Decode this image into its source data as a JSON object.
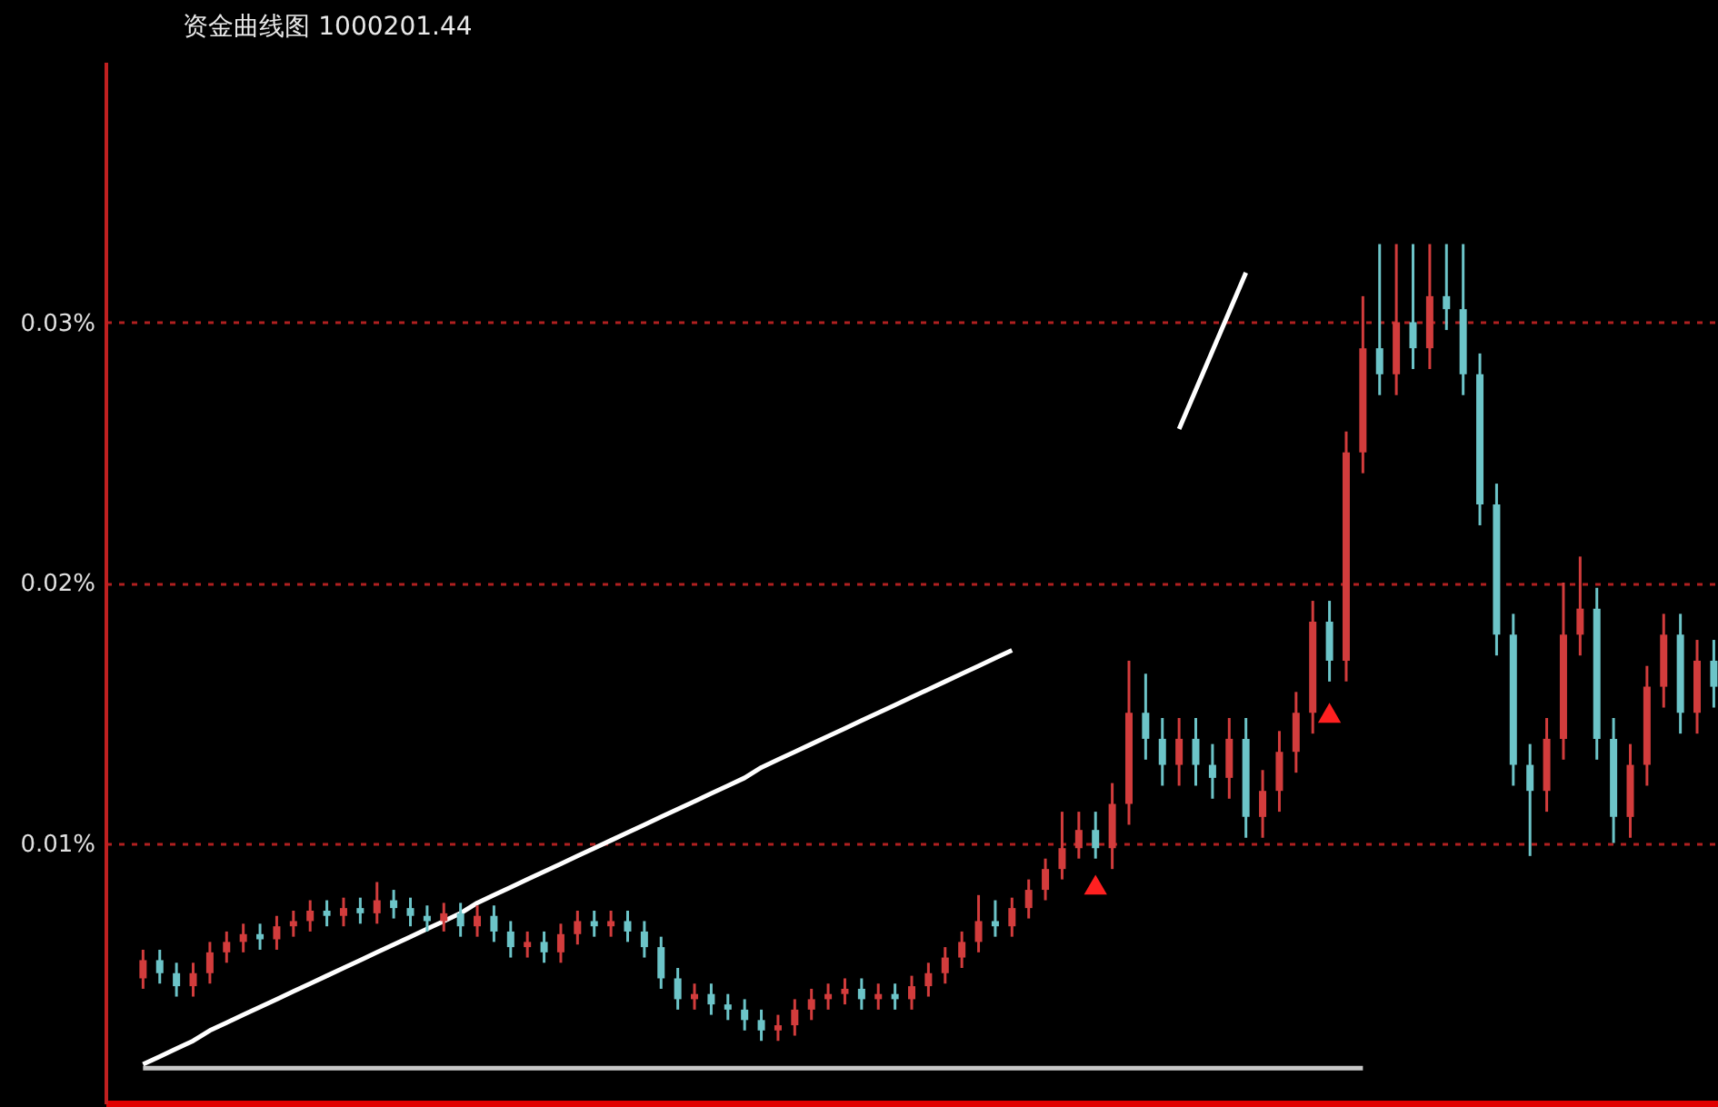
{
  "chart_data": {
    "type": "candlestick",
    "title": "资金曲线图  1000201.44",
    "categories": [
      null,
      null,
      null,
      null,
      null,
      null,
      null,
      null,
      null,
      null,
      null,
      null,
      null,
      null,
      null,
      null,
      null,
      null,
      null,
      null,
      null,
      null,
      null,
      null,
      null,
      null,
      null,
      null,
      null,
      null,
      null,
      null,
      null,
      null,
      null,
      null,
      null,
      null,
      null,
      null,
      null,
      null,
      null,
      null,
      null,
      null,
      null,
      null,
      null,
      null,
      null,
      null,
      null,
      null,
      null,
      null,
      null,
      null,
      null,
      null,
      null,
      null,
      null,
      null,
      null,
      null,
      null,
      null,
      null,
      null,
      null,
      null,
      null,
      null,
      null,
      null,
      null,
      null,
      null,
      null,
      null,
      null,
      null,
      null,
      null,
      null,
      null,
      null,
      null,
      null,
      null,
      null,
      null,
      null,
      null
    ],
    "ohlc": [
      [
        0.0048,
        0.0059,
        0.0044,
        0.0055
      ],
      [
        0.0055,
        0.0059,
        0.0046,
        0.005
      ],
      [
        0.005,
        0.0054,
        0.0041,
        0.0045
      ],
      [
        0.0045,
        0.0054,
        0.0041,
        0.005
      ],
      [
        0.005,
        0.0062,
        0.0046,
        0.0058
      ],
      [
        0.0058,
        0.0066,
        0.0054,
        0.0062
      ],
      [
        0.0062,
        0.0069,
        0.0058,
        0.0065
      ],
      [
        0.0065,
        0.0069,
        0.0059,
        0.0063
      ],
      [
        0.0063,
        0.0072,
        0.0059,
        0.0068
      ],
      [
        0.0068,
        0.0074,
        0.0064,
        0.007
      ],
      [
        0.007,
        0.0078,
        0.0066,
        0.0074
      ],
      [
        0.0074,
        0.0078,
        0.0068,
        0.0072
      ],
      [
        0.0072,
        0.0079,
        0.0068,
        0.0075
      ],
      [
        0.0075,
        0.0079,
        0.0069,
        0.0073
      ],
      [
        0.0073,
        0.0085,
        0.0069,
        0.0078
      ],
      [
        0.0078,
        0.0082,
        0.0071,
        0.0075
      ],
      [
        0.0075,
        0.0079,
        0.0068,
        0.0072
      ],
      [
        0.0072,
        0.0076,
        0.0066,
        0.007
      ],
      [
        0.007,
        0.0077,
        0.0066,
        0.0073
      ],
      [
        0.0073,
        0.0077,
        0.0064,
        0.0068
      ],
      [
        0.0068,
        0.0076,
        0.0064,
        0.0072
      ],
      [
        0.0072,
        0.0076,
        0.0062,
        0.0066
      ],
      [
        0.0066,
        0.007,
        0.0056,
        0.006
      ],
      [
        0.006,
        0.0066,
        0.0056,
        0.0062
      ],
      [
        0.0062,
        0.0066,
        0.0054,
        0.0058
      ],
      [
        0.0058,
        0.0069,
        0.0054,
        0.0065
      ],
      [
        0.0065,
        0.0074,
        0.0061,
        0.007
      ],
      [
        0.007,
        0.0074,
        0.0064,
        0.0068
      ],
      [
        0.0068,
        0.0074,
        0.0064,
        0.007
      ],
      [
        0.007,
        0.0074,
        0.0062,
        0.0066
      ],
      [
        0.0066,
        0.007,
        0.0056,
        0.006
      ],
      [
        0.006,
        0.0064,
        0.0044,
        0.0048
      ],
      [
        0.0048,
        0.0052,
        0.0036,
        0.004
      ],
      [
        0.004,
        0.0046,
        0.0036,
        0.0042
      ],
      [
        0.0042,
        0.0046,
        0.0034,
        0.0038
      ],
      [
        0.0038,
        0.0042,
        0.0032,
        0.0036
      ],
      [
        0.0036,
        0.004,
        0.0028,
        0.0032
      ],
      [
        0.0032,
        0.0036,
        0.0024,
        0.0028
      ],
      [
        0.0028,
        0.0034,
        0.0024,
        0.003
      ],
      [
        0.003,
        0.004,
        0.0026,
        0.0036
      ],
      [
        0.0036,
        0.0044,
        0.0032,
        0.004
      ],
      [
        0.004,
        0.0046,
        0.0036,
        0.0042
      ],
      [
        0.0042,
        0.0048,
        0.0038,
        0.0044
      ],
      [
        0.0044,
        0.0048,
        0.0036,
        0.004
      ],
      [
        0.004,
        0.0046,
        0.0036,
        0.0042
      ],
      [
        0.0042,
        0.0046,
        0.0036,
        0.004
      ],
      [
        0.004,
        0.0049,
        0.0036,
        0.0045
      ],
      [
        0.0045,
        0.0054,
        0.0041,
        0.005
      ],
      [
        0.005,
        0.006,
        0.0046,
        0.0056
      ],
      [
        0.0056,
        0.0066,
        0.0052,
        0.0062
      ],
      [
        0.0062,
        0.008,
        0.0058,
        0.007
      ],
      [
        0.007,
        0.0078,
        0.0064,
        0.0068
      ],
      [
        0.0068,
        0.0079,
        0.0064,
        0.0075
      ],
      [
        0.0075,
        0.0086,
        0.0071,
        0.0082
      ],
      [
        0.0082,
        0.0094,
        0.0078,
        0.009
      ],
      [
        0.009,
        0.0112,
        0.0086,
        0.0098
      ],
      [
        0.0098,
        0.0112,
        0.0094,
        0.0105
      ],
      [
        0.0105,
        0.0112,
        0.0094,
        0.0098
      ],
      [
        0.0098,
        0.0123,
        0.009,
        0.0115
      ],
      [
        0.0115,
        0.017,
        0.0107,
        0.015
      ],
      [
        0.015,
        0.0165,
        0.0132,
        0.014
      ],
      [
        0.014,
        0.0148,
        0.0122,
        0.013
      ],
      [
        0.013,
        0.0148,
        0.0122,
        0.014
      ],
      [
        0.014,
        0.0148,
        0.0122,
        0.013
      ],
      [
        0.013,
        0.0138,
        0.0117,
        0.0125
      ],
      [
        0.0125,
        0.0148,
        0.0117,
        0.014
      ],
      [
        0.014,
        0.0148,
        0.0102,
        0.011
      ],
      [
        0.011,
        0.0128,
        0.0102,
        0.012
      ],
      [
        0.012,
        0.0143,
        0.0112,
        0.0135
      ],
      [
        0.0135,
        0.0158,
        0.0127,
        0.015
      ],
      [
        0.015,
        0.0193,
        0.0142,
        0.0185
      ],
      [
        0.0185,
        0.0193,
        0.0162,
        0.017
      ],
      [
        0.017,
        0.0258,
        0.0162,
        0.025
      ],
      [
        0.025,
        0.031,
        0.0242,
        0.029
      ],
      [
        0.029,
        0.033,
        0.0272,
        0.028
      ],
      [
        0.028,
        0.033,
        0.0272,
        0.03
      ],
      [
        0.03,
        0.033,
        0.0282,
        0.029
      ],
      [
        0.029,
        0.033,
        0.0282,
        0.031
      ],
      [
        0.031,
        0.033,
        0.0297,
        0.0305
      ],
      [
        0.0305,
        0.033,
        0.0272,
        0.028
      ],
      [
        0.028,
        0.0288,
        0.0222,
        0.023
      ],
      [
        0.023,
        0.0238,
        0.0172,
        0.018
      ],
      [
        0.018,
        0.0188,
        0.0122,
        0.013
      ],
      [
        0.013,
        0.0138,
        0.0095,
        0.012
      ],
      [
        0.012,
        0.0148,
        0.0112,
        0.014
      ],
      [
        0.014,
        0.02,
        0.0132,
        0.018
      ],
      [
        0.018,
        0.021,
        0.0172,
        0.019
      ],
      [
        0.019,
        0.0198,
        0.0132,
        0.014
      ],
      [
        0.014,
        0.0148,
        0.01,
        0.011
      ],
      [
        0.011,
        0.0138,
        0.0102,
        0.013
      ],
      [
        0.013,
        0.0168,
        0.0122,
        0.016
      ],
      [
        0.016,
        0.0188,
        0.0152,
        0.018
      ],
      [
        0.018,
        0.0188,
        0.0142,
        0.015
      ],
      [
        0.015,
        0.0178,
        0.0142,
        0.017
      ],
      [
        0.017,
        0.0178,
        0.0152,
        0.016
      ]
    ],
    "colors": [
      "#d23c3c",
      "#6cc4c8",
      "#6cc4c8",
      "#d23c3c",
      "#d23c3c",
      "#d23c3c",
      "#d23c3c",
      "#6cc4c8",
      "#d23c3c",
      "#d23c3c",
      "#d23c3c",
      "#6cc4c8",
      "#d23c3c",
      "#6cc4c8",
      "#d23c3c",
      "#6cc4c8",
      "#6cc4c8",
      "#6cc4c8",
      "#d23c3c",
      "#6cc4c8",
      "#d23c3c",
      "#6cc4c8",
      "#6cc4c8",
      "#d23c3c",
      "#6cc4c8",
      "#d23c3c",
      "#d23c3c",
      "#6cc4c8",
      "#d23c3c",
      "#6cc4c8",
      "#6cc4c8",
      "#6cc4c8",
      "#6cc4c8",
      "#d23c3c",
      "#6cc4c8",
      "#6cc4c8",
      "#6cc4c8",
      "#6cc4c8",
      "#d23c3c",
      "#d23c3c",
      "#d23c3c",
      "#d23c3c",
      "#d23c3c",
      "#6cc4c8",
      "#d23c3c",
      "#6cc4c8",
      "#d23c3c",
      "#d23c3c",
      "#d23c3c",
      "#d23c3c",
      "#d23c3c",
      "#6cc4c8",
      "#d23c3c",
      "#d23c3c",
      "#d23c3c",
      "#d23c3c",
      "#d23c3c",
      "#6cc4c8",
      "#d23c3c",
      "#d23c3c",
      "#6cc4c8",
      "#6cc4c8",
      "#d23c3c",
      "#6cc4c8",
      "#6cc4c8",
      "#d23c3c",
      "#6cc4c8",
      "#d23c3c",
      "#d23c3c",
      "#d23c3c",
      "#d23c3c",
      "#6cc4c8",
      "#d23c3c",
      "#d23c3c",
      "#6cc4c8",
      "#d23c3c",
      "#6cc4c8",
      "#d23c3c",
      "#6cc4c8",
      "#6cc4c8",
      "#6cc4c8",
      "#6cc4c8",
      "#6cc4c8",
      "#6cc4c8",
      "#d23c3c",
      "#d23c3c",
      "#d23c3c",
      "#6cc4c8",
      "#6cc4c8",
      "#d23c3c",
      "#d23c3c",
      "#d23c3c",
      "#6cc4c8",
      "#d23c3c",
      "#6cc4c8"
    ],
    "series": [
      {
        "type": "line",
        "color": "#ffffff",
        "values": [
          0.0015,
          0.0018,
          0.0021,
          0.0024,
          0.0028,
          0.0031,
          0.0034,
          0.0037,
          0.004,
          0.0043,
          0.0046,
          0.0049,
          0.0052,
          0.0055,
          0.0058,
          0.0061,
          0.0064,
          0.0067,
          0.007,
          0.0073,
          0.0077,
          0.008,
          0.0083,
          0.0086,
          0.0089,
          0.0092,
          0.0095,
          0.0098,
          0.0101,
          0.0104,
          0.0107,
          0.011,
          0.0113,
          0.0116,
          0.0119,
          0.0122,
          0.0125,
          0.0129,
          0.0132,
          0.0135,
          0.0138,
          0.0141,
          0.0144,
          0.0147,
          0.015,
          0.0153,
          0.0156,
          0.0159,
          0.0162,
          0.0165,
          0.0168,
          0.0171,
          0.0174,
          null,
          null,
          null,
          null,
          null,
          null,
          null,
          null,
          null,
          null,
          null,
          null,
          null,
          null,
          null,
          null,
          null,
          null,
          null,
          null,
          null,
          null,
          null,
          null,
          null,
          null,
          null,
          null,
          null,
          null,
          null,
          null,
          null,
          null,
          null,
          null,
          null,
          null,
          null,
          null,
          null,
          null
        ]
      },
      {
        "type": "line",
        "color": "#ffffff",
        "values": [
          null,
          null,
          null,
          null,
          null,
          null,
          null,
          null,
          null,
          null,
          null,
          null,
          null,
          null,
          null,
          null,
          null,
          null,
          null,
          null,
          null,
          null,
          null,
          null,
          null,
          null,
          null,
          null,
          null,
          null,
          null,
          null,
          null,
          null,
          null,
          null,
          null,
          null,
          null,
          null,
          null,
          null,
          null,
          null,
          null,
          null,
          null,
          null,
          null,
          null,
          null,
          null,
          null,
          null,
          null,
          null,
          null,
          null,
          null,
          null,
          null,
          null,
          0.0259,
          0.0274,
          0.0289,
          0.0304,
          0.0319,
          null,
          null,
          null,
          null,
          null,
          null,
          null,
          null,
          null,
          null,
          null,
          null,
          null,
          null,
          null,
          null,
          null,
          null,
          null,
          null,
          null,
          null,
          null,
          null,
          null,
          null,
          null,
          null
        ]
      },
      {
        "type": "line",
        "color": "#c8c8c8",
        "values": [
          0.00135,
          0.00135,
          0.00135,
          0.00135,
          0.00135,
          0.00135,
          0.00135,
          0.00135,
          0.00135,
          0.00135,
          0.00135,
          0.00135,
          0.00135,
          0.00135,
          0.00135,
          0.00135,
          0.00135,
          0.00135,
          0.00135,
          0.00135,
          0.00135,
          0.00135,
          0.00135,
          0.00135,
          0.00135,
          0.00135,
          0.00135,
          0.00135,
          0.00135,
          0.00135,
          0.00135,
          0.00135,
          0.00135,
          0.00135,
          0.00135,
          0.00135,
          0.00135,
          0.00135,
          0.00135,
          0.00135,
          0.00135,
          0.00135,
          0.00135,
          0.00135,
          0.00135,
          0.00135,
          0.00135,
          0.00135,
          0.00135,
          0.00135,
          0.00135,
          0.00135,
          0.00135,
          0.00135,
          0.00135,
          0.00135,
          0.00135,
          0.00135,
          0.00135,
          0.00135,
          0.00135,
          0.00135,
          0.00135,
          0.00135,
          0.00135,
          0.00135,
          0.00135,
          0.00135,
          0.00135,
          0.00135,
          0.00135,
          0.00135,
          0.00135,
          0.00135,
          null,
          null,
          null,
          null,
          null,
          null,
          null,
          null,
          null,
          null,
          null,
          null,
          null,
          null,
          null,
          null,
          null,
          null,
          null,
          null,
          null
        ]
      },
      {
        "type": "scatter",
        "marker": "triangle",
        "color": "#ff2020",
        "values": [
          null,
          null,
          null,
          null,
          null,
          null,
          null,
          null,
          null,
          null,
          null,
          null,
          null,
          null,
          null,
          null,
          null,
          null,
          null,
          null,
          null,
          null,
          null,
          null,
          null,
          null,
          null,
          null,
          null,
          null,
          null,
          null,
          null,
          null,
          null,
          null,
          null,
          null,
          null,
          null,
          null,
          null,
          null,
          null,
          null,
          null,
          null,
          null,
          null,
          null,
          null,
          null,
          null,
          null,
          null,
          null,
          null,
          0.0084,
          null,
          null,
          null,
          null,
          null,
          null,
          null,
          null,
          null,
          null,
          null,
          null,
          null,
          0.015,
          null,
          null,
          null,
          null,
          null,
          null,
          null,
          null,
          null,
          null,
          null,
          null,
          null,
          null,
          null,
          null,
          null,
          null,
          null,
          null,
          null,
          null,
          null
        ]
      }
    ],
    "ylim": [
      0,
      0.04
    ],
    "yticks": [
      {
        "value": 0.01,
        "label": "0.01%"
      },
      {
        "value": 0.02,
        "label": "0.02%"
      },
      {
        "value": 0.03,
        "label": "0.03%"
      }
    ],
    "grid": "y",
    "tick_labels": "y"
  }
}
